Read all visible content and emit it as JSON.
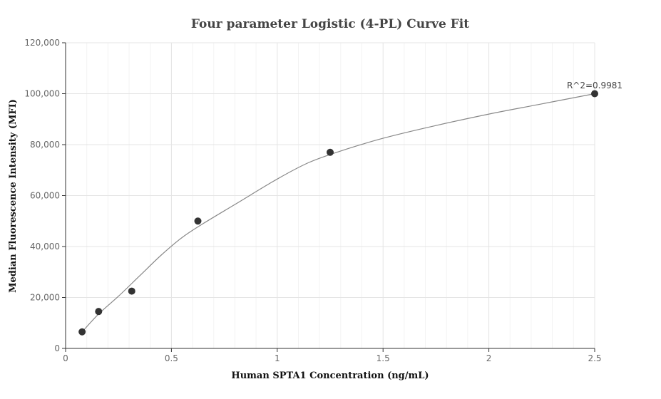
{
  "chart_data": {
    "type": "scatter",
    "title": "Four parameter Logistic (4-PL) Curve Fit",
    "xlabel": "Human SPTA1 Concentration (ng/mL)",
    "ylabel": "Median Fluorescence Intensity (MFI)",
    "xlim": [
      0,
      2.5
    ],
    "ylim": [
      0,
      120000
    ],
    "x_ticks": [
      0,
      0.5,
      1,
      1.5,
      2,
      2.5
    ],
    "x_tick_labels": [
      "0",
      "0.5",
      "1",
      "1.5",
      "2",
      "2.5"
    ],
    "y_ticks": [
      0,
      20000,
      40000,
      60000,
      80000,
      100000,
      120000
    ],
    "y_tick_labels": [
      "0",
      "20,000",
      "40,000",
      "60,000",
      "80,000",
      "100,000",
      "120,000"
    ],
    "grid": true,
    "legend": false,
    "series": [
      {
        "points": [
          {
            "x": 0.078,
            "y": 6500
          },
          {
            "x": 0.156,
            "y": 14500
          },
          {
            "x": 0.3125,
            "y": 22500
          },
          {
            "x": 0.625,
            "y": 50000
          },
          {
            "x": 1.25,
            "y": 77000
          },
          {
            "x": 2.5,
            "y": 100000
          }
        ]
      }
    ],
    "fit_curve": [
      {
        "x": 0.078,
        "y": 6500
      },
      {
        "x": 0.156,
        "y": 13500
      },
      {
        "x": 0.25,
        "y": 20500
      },
      {
        "x": 0.35,
        "y": 28500
      },
      {
        "x": 0.45,
        "y": 36500
      },
      {
        "x": 0.55,
        "y": 43500
      },
      {
        "x": 0.65,
        "y": 49000
      },
      {
        "x": 0.8,
        "y": 56500
      },
      {
        "x": 1.0,
        "y": 66500
      },
      {
        "x": 1.15,
        "y": 73000
      },
      {
        "x": 1.3,
        "y": 77500
      },
      {
        "x": 1.5,
        "y": 82500
      },
      {
        "x": 1.75,
        "y": 87500
      },
      {
        "x": 2.0,
        "y": 92000
      },
      {
        "x": 2.25,
        "y": 96000
      },
      {
        "x": 2.5,
        "y": 100000
      }
    ],
    "annotations": [
      {
        "text": "R^2=0.9981",
        "x": 2.5,
        "y": 100000
      }
    ],
    "colors": {
      "points": "#333333",
      "curve": "#888888",
      "grid": "#e4e4e4"
    }
  }
}
